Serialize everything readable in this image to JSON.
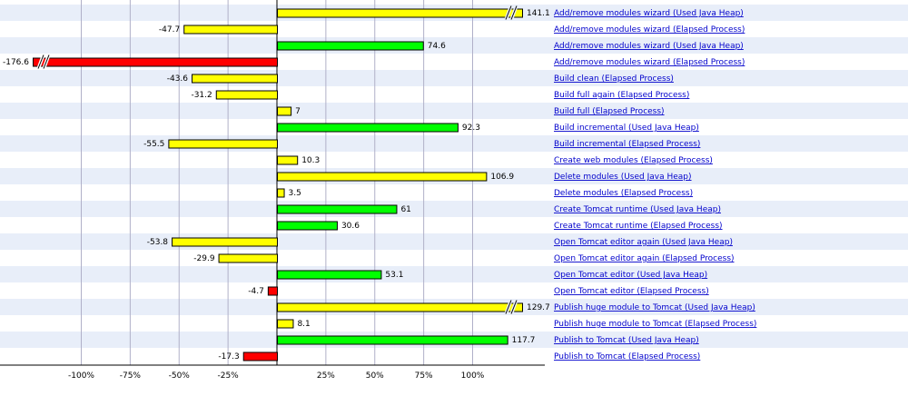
{
  "chart_data": {
    "type": "bar",
    "orientation": "horizontal",
    "x_tick_labels": [
      "-100%",
      "-75%",
      "-50%",
      "-25%",
      "25%",
      "50%",
      "75%",
      "100%"
    ],
    "x_ticks": [
      -100,
      -75,
      -50,
      -25,
      25,
      50,
      75,
      100
    ],
    "xlim": [
      -142,
      140
    ],
    "grid": true,
    "colors": {
      "yellow": "#ffff00",
      "green": "#00ff00",
      "red": "#ff0000",
      "band": "#e8eef9",
      "grid": "#b0b0c8",
      "link": "#0000cc"
    },
    "series": [
      {
        "name": "Add/remove modules wizard (Used Java Heap)",
        "value": 141.1,
        "color": "yellow",
        "broken": true
      },
      {
        "name": "Add/remove modules wizard (Elapsed Process)",
        "value": -47.7,
        "color": "yellow"
      },
      {
        "name": "Add/remove modules wizard (Used Java Heap)",
        "value": 74.6,
        "color": "green"
      },
      {
        "name": "Add/remove modules wizard (Elapsed Process)",
        "value": -176.6,
        "color": "red",
        "broken": true
      },
      {
        "name": "Build clean (Elapsed Process)",
        "value": -43.6,
        "color": "yellow"
      },
      {
        "name": "Build full again (Elapsed Process)",
        "value": -31.2,
        "color": "yellow"
      },
      {
        "name": "Build full (Elapsed Process)",
        "value": 7,
        "color": "yellow"
      },
      {
        "name": "Build incremental (Used Java Heap)",
        "value": 92.3,
        "color": "green"
      },
      {
        "name": "Build incremental (Elapsed Process)",
        "value": -55.5,
        "color": "yellow"
      },
      {
        "name": "Create web modules (Elapsed Process)",
        "value": 10.3,
        "color": "yellow"
      },
      {
        "name": "Delete modules (Used Java Heap)",
        "value": 106.9,
        "color": "yellow"
      },
      {
        "name": "Delete modules (Elapsed Process)",
        "value": 3.5,
        "color": "yellow"
      },
      {
        "name": "Create Tomcat runtime (Used Java Heap)",
        "value": 61,
        "color": "green"
      },
      {
        "name": "Create Tomcat runtime (Elapsed Process)",
        "value": 30.6,
        "color": "green"
      },
      {
        "name": "Open Tomcat editor again (Used Java Heap)",
        "value": -53.8,
        "color": "yellow"
      },
      {
        "name": "Open Tomcat editor again (Elapsed Process)",
        "value": -29.9,
        "color": "yellow"
      },
      {
        "name": "Open Tomcat editor (Used Java Heap)",
        "value": 53.1,
        "color": "green"
      },
      {
        "name": "Open Tomcat editor (Elapsed Process)",
        "value": -4.7,
        "color": "red"
      },
      {
        "name": "Publish huge module to Tomcat (Used Java Heap)",
        "value": 129.7,
        "color": "yellow",
        "broken": true
      },
      {
        "name": "Publish huge module to Tomcat (Elapsed Process)",
        "value": 8.1,
        "color": "yellow"
      },
      {
        "name": "Publish to Tomcat (Used Java Heap)",
        "value": 117.7,
        "color": "green"
      },
      {
        "name": "Publish to Tomcat (Elapsed Process)",
        "value": -17.3,
        "color": "red"
      }
    ]
  }
}
